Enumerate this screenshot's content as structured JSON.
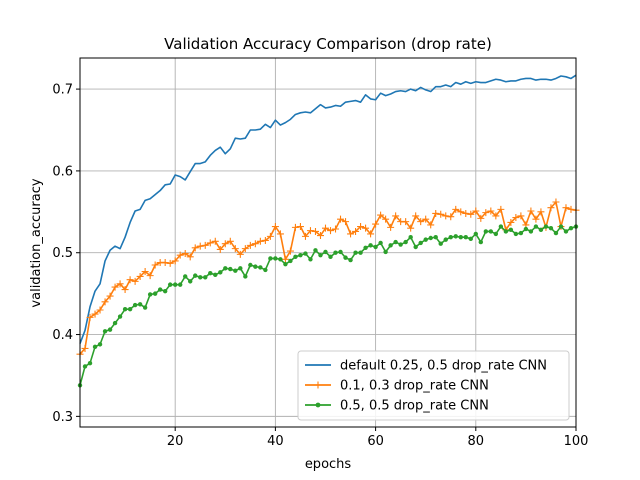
{
  "chart_data": {
    "type": "line",
    "title": "Validation Accuracy Comparison (drop rate)",
    "xlabel": "epochs",
    "ylabel": "validation_accuracy",
    "xlim": [
      1,
      100
    ],
    "ylim": [
      0.287,
      0.738
    ],
    "xticks": [
      20,
      40,
      60,
      80,
      100
    ],
    "yticks": [
      0.3,
      0.4,
      0.5,
      0.6,
      0.7
    ],
    "grid": true,
    "legend_position": "lower-right",
    "series": [
      {
        "name": "default 0.25, 0.5 drop_rate CNN",
        "color": "#1f77b4",
        "marker": "none",
        "x": [
          1,
          2,
          3,
          4,
          5,
          6,
          7,
          8,
          9,
          10,
          11,
          12,
          13,
          14,
          15,
          16,
          17,
          18,
          19,
          20,
          21,
          22,
          23,
          24,
          25,
          26,
          27,
          28,
          29,
          30,
          31,
          32,
          33,
          34,
          35,
          36,
          37,
          38,
          39,
          40,
          41,
          42,
          43,
          44,
          45,
          46,
          47,
          48,
          49,
          50,
          51,
          52,
          53,
          54,
          55,
          56,
          57,
          58,
          59,
          60,
          61,
          62,
          63,
          64,
          65,
          66,
          67,
          68,
          69,
          70,
          71,
          72,
          73,
          74,
          75,
          76,
          77,
          78,
          79,
          80,
          81,
          82,
          83,
          84,
          85,
          86,
          87,
          88,
          89,
          90,
          91,
          92,
          93,
          94,
          95,
          96,
          97,
          98,
          99,
          100
        ],
        "values": [
          0.389,
          0.405,
          0.434,
          0.453,
          0.462,
          0.49,
          0.503,
          0.508,
          0.505,
          0.519,
          0.537,
          0.551,
          0.553,
          0.564,
          0.566,
          0.571,
          0.576,
          0.583,
          0.584,
          0.595,
          0.593,
          0.589,
          0.599,
          0.609,
          0.609,
          0.611,
          0.619,
          0.625,
          0.629,
          0.621,
          0.627,
          0.64,
          0.639,
          0.64,
          0.65,
          0.65,
          0.651,
          0.657,
          0.653,
          0.662,
          0.656,
          0.659,
          0.663,
          0.669,
          0.671,
          0.672,
          0.671,
          0.676,
          0.681,
          0.677,
          0.678,
          0.68,
          0.679,
          0.684,
          0.685,
          0.686,
          0.684,
          0.693,
          0.688,
          0.687,
          0.695,
          0.692,
          0.694,
          0.697,
          0.698,
          0.697,
          0.7,
          0.698,
          0.702,
          0.699,
          0.697,
          0.703,
          0.703,
          0.705,
          0.703,
          0.708,
          0.706,
          0.709,
          0.707,
          0.709,
          0.708,
          0.708,
          0.71,
          0.712,
          0.711,
          0.709,
          0.71,
          0.71,
          0.712,
          0.713,
          0.713,
          0.711,
          0.712,
          0.712,
          0.711,
          0.713,
          0.716,
          0.715,
          0.713,
          0.717
        ]
      },
      {
        "name": "0.1, 0.3 drop_rate CNN",
        "color": "#ff7f0e",
        "marker": "plus",
        "x": [
          1,
          2,
          3,
          4,
          5,
          6,
          7,
          8,
          9,
          10,
          11,
          12,
          13,
          14,
          15,
          16,
          17,
          18,
          19,
          20,
          21,
          22,
          23,
          24,
          25,
          26,
          27,
          28,
          29,
          30,
          31,
          32,
          33,
          34,
          35,
          36,
          37,
          38,
          39,
          40,
          41,
          42,
          43,
          44,
          45,
          46,
          47,
          48,
          49,
          50,
          51,
          52,
          53,
          54,
          55,
          56,
          57,
          58,
          59,
          60,
          61,
          62,
          63,
          64,
          65,
          66,
          67,
          68,
          69,
          70,
          71,
          72,
          73,
          74,
          75,
          76,
          77,
          78,
          79,
          80,
          81,
          82,
          83,
          84,
          85,
          86,
          87,
          88,
          89,
          90,
          91,
          92,
          93,
          94,
          95,
          96,
          97,
          98,
          99,
          100
        ],
        "values": [
          0.376,
          0.383,
          0.421,
          0.425,
          0.43,
          0.44,
          0.447,
          0.458,
          0.462,
          0.455,
          0.467,
          0.465,
          0.471,
          0.477,
          0.472,
          0.485,
          0.488,
          0.488,
          0.487,
          0.49,
          0.497,
          0.499,
          0.495,
          0.506,
          0.508,
          0.509,
          0.512,
          0.514,
          0.504,
          0.511,
          0.514,
          0.505,
          0.498,
          0.505,
          0.509,
          0.511,
          0.514,
          0.515,
          0.52,
          0.532,
          0.523,
          0.492,
          0.502,
          0.531,
          0.532,
          0.52,
          0.527,
          0.526,
          0.521,
          0.53,
          0.527,
          0.529,
          0.541,
          0.538,
          0.523,
          0.526,
          0.532,
          0.53,
          0.523,
          0.535,
          0.546,
          0.541,
          0.531,
          0.545,
          0.538,
          0.538,
          0.53,
          0.545,
          0.538,
          0.541,
          0.534,
          0.548,
          0.547,
          0.545,
          0.544,
          0.553,
          0.55,
          0.548,
          0.547,
          0.551,
          0.542,
          0.549,
          0.551,
          0.545,
          0.553,
          0.528,
          0.537,
          0.543,
          0.545,
          0.534,
          0.551,
          0.541,
          0.55,
          0.531,
          0.555,
          0.562,
          0.532,
          0.555,
          0.553,
          0.552
        ]
      },
      {
        "name": "0.5, 0.5 drop_rate CNN",
        "color": "#2ca02c",
        "marker": "dot",
        "x": [
          1,
          2,
          3,
          4,
          5,
          6,
          7,
          8,
          9,
          10,
          11,
          12,
          13,
          14,
          15,
          16,
          17,
          18,
          19,
          20,
          21,
          22,
          23,
          24,
          25,
          26,
          27,
          28,
          29,
          30,
          31,
          32,
          33,
          34,
          35,
          36,
          37,
          38,
          39,
          40,
          41,
          42,
          43,
          44,
          45,
          46,
          47,
          48,
          49,
          50,
          51,
          52,
          53,
          54,
          55,
          56,
          57,
          58,
          59,
          60,
          61,
          62,
          63,
          64,
          65,
          66,
          67,
          68,
          69,
          70,
          71,
          72,
          73,
          74,
          75,
          76,
          77,
          78,
          79,
          80,
          81,
          82,
          83,
          84,
          85,
          86,
          87,
          88,
          89,
          90,
          91,
          92,
          93,
          94,
          95,
          96,
          97,
          98,
          99,
          100
        ],
        "values": [
          0.338,
          0.361,
          0.365,
          0.385,
          0.388,
          0.404,
          0.406,
          0.414,
          0.422,
          0.431,
          0.431,
          0.436,
          0.437,
          0.433,
          0.449,
          0.45,
          0.455,
          0.453,
          0.461,
          0.461,
          0.461,
          0.471,
          0.465,
          0.472,
          0.47,
          0.47,
          0.475,
          0.473,
          0.476,
          0.481,
          0.48,
          0.478,
          0.481,
          0.471,
          0.485,
          0.483,
          0.482,
          0.479,
          0.493,
          0.493,
          0.492,
          0.486,
          0.49,
          0.495,
          0.497,
          0.499,
          0.492,
          0.503,
          0.497,
          0.501,
          0.495,
          0.5,
          0.501,
          0.494,
          0.491,
          0.5,
          0.5,
          0.506,
          0.509,
          0.507,
          0.512,
          0.501,
          0.509,
          0.513,
          0.51,
          0.513,
          0.519,
          0.507,
          0.512,
          0.516,
          0.518,
          0.519,
          0.511,
          0.516,
          0.519,
          0.52,
          0.519,
          0.519,
          0.517,
          0.523,
          0.513,
          0.526,
          0.526,
          0.523,
          0.532,
          0.526,
          0.528,
          0.523,
          0.524,
          0.529,
          0.526,
          0.532,
          0.528,
          0.532,
          0.53,
          0.524,
          0.532,
          0.526,
          0.53,
          0.532
        ]
      }
    ]
  }
}
